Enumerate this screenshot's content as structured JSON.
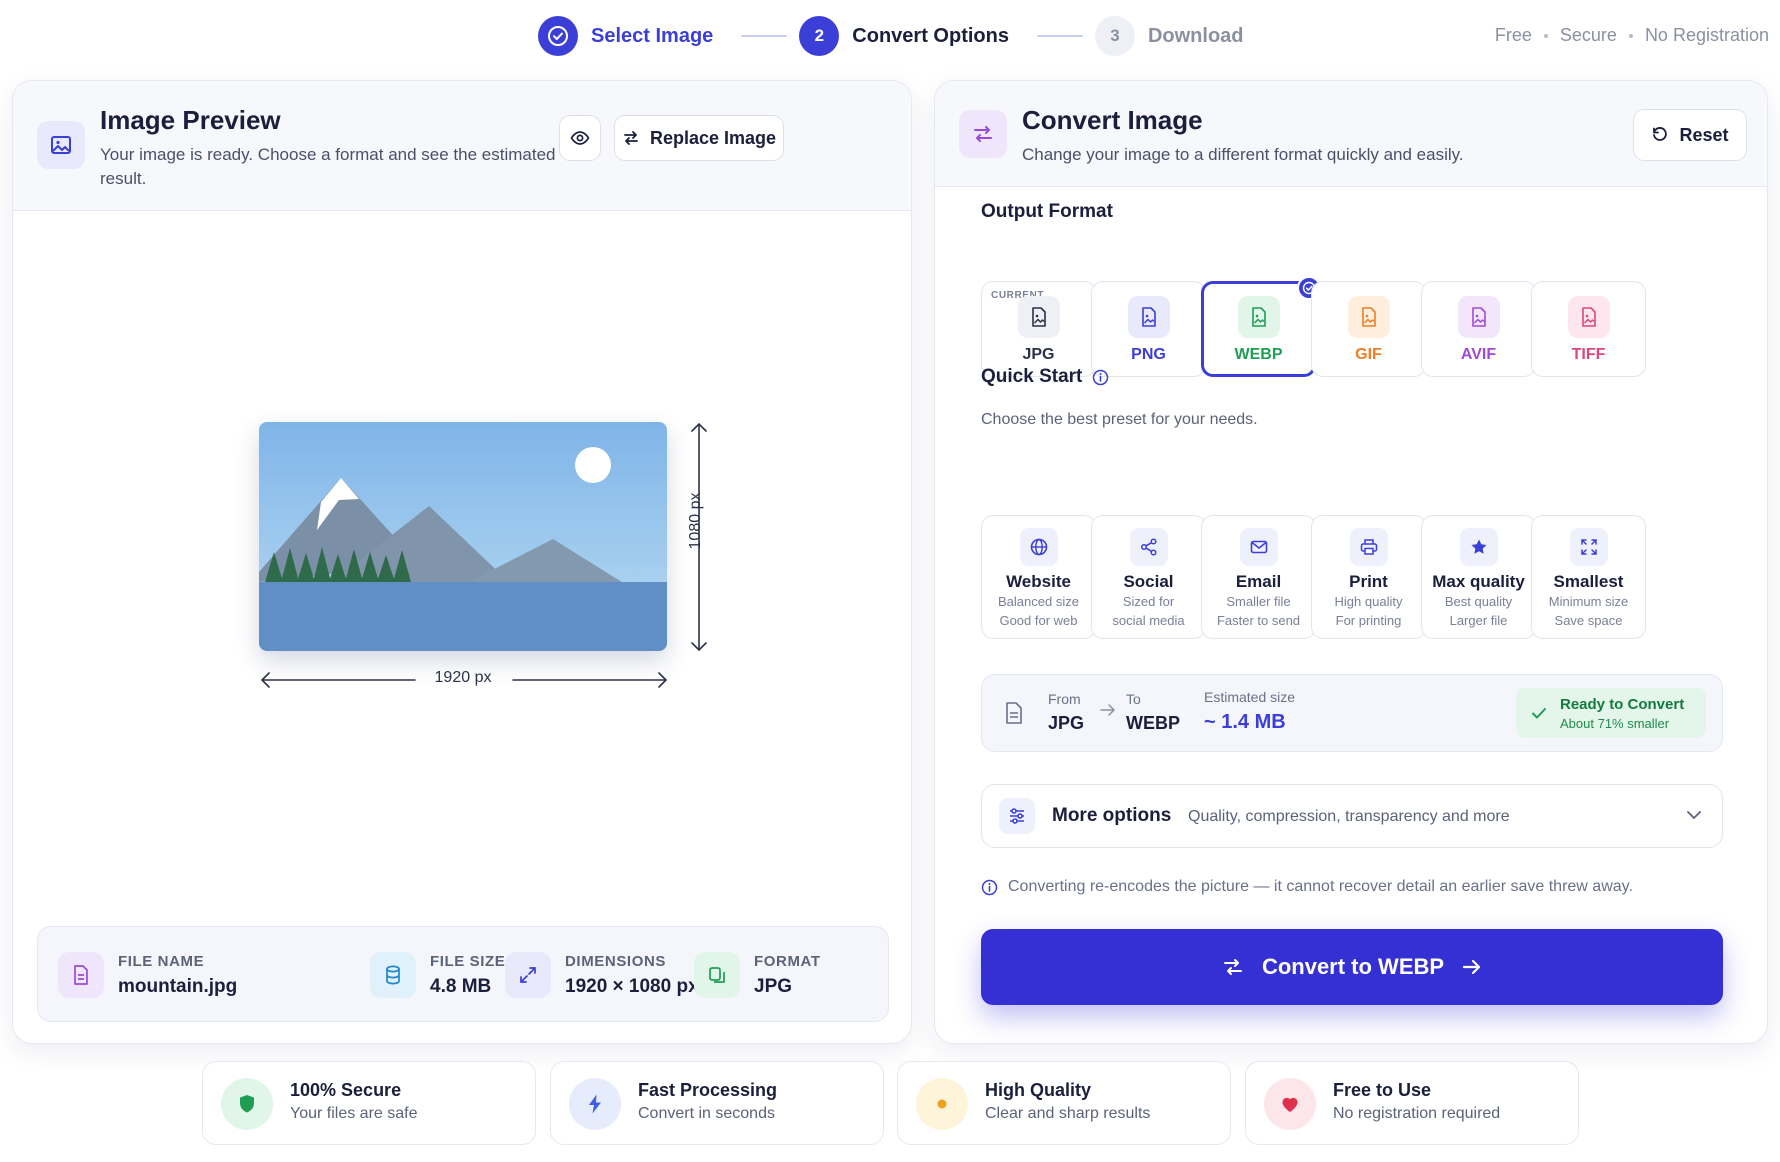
{
  "stepper": {
    "steps": [
      {
        "label": "Select Image",
        "state": "done"
      },
      {
        "number": "2",
        "label": "Convert Options",
        "state": "active"
      },
      {
        "number": "3",
        "label": "Download",
        "state": "todo"
      }
    ]
  },
  "tagline": [
    "Free",
    "Secure",
    "No Registration"
  ],
  "preview": {
    "title": "Image Preview",
    "subtitle": "Your image is ready. Choose a format and see the estimated result.",
    "replace_label": "Replace Image",
    "height_label": "1080 px",
    "width_label": "1920 px",
    "file": {
      "name_label": "FILE NAME",
      "name": "mountain.jpg",
      "size_label": "FILE SIZE",
      "size": "4.8 MB",
      "dim_label": "DIMENSIONS",
      "dim": "1920 × 1080 px",
      "format_label": "FORMAT",
      "format": "JPG"
    }
  },
  "convert": {
    "title": "Convert Image",
    "subtitle": "Change your image to a different format quickly and easily.",
    "reset_label": "Reset",
    "output_format_label": "Output Format",
    "current_tag": "CURRENT",
    "formats": [
      {
        "label": "JPG",
        "color": "#2c3148",
        "bg": "#eef0f5"
      },
      {
        "label": "PNG",
        "color": "#3b3fd8",
        "bg": "#e8eafc"
      },
      {
        "label": "WEBP",
        "color": "#1f9d55",
        "bg": "#e1f5e8"
      },
      {
        "label": "GIF",
        "color": "#f07d24",
        "bg": "#fdeede"
      },
      {
        "label": "AVIF",
        "color": "#a04ad8",
        "bg": "#f3e6fb"
      },
      {
        "label": "TIFF",
        "color": "#e0457b",
        "bg": "#fde6ee"
      }
    ],
    "selected_format": "WEBP",
    "quick_start_label": "Quick Start",
    "quick_start_sub": "Choose the best preset for your needs.",
    "presets": [
      {
        "title": "Website",
        "l1": "Balanced size",
        "l2": "Good for web",
        "icon": "globe-icon"
      },
      {
        "title": "Social",
        "l1": "Sized for",
        "l2": "social media",
        "icon": "share-icon"
      },
      {
        "title": "Email",
        "l1": "Smaller file",
        "l2": "Faster to send",
        "icon": "mail-icon"
      },
      {
        "title": "Print",
        "l1": "High quality",
        "l2": "For printing",
        "icon": "printer-icon"
      },
      {
        "title": "Max quality",
        "l1": "Best quality",
        "l2": "Larger file",
        "icon": "star-icon"
      },
      {
        "title": "Smallest",
        "l1": "Minimum size",
        "l2": "Save space",
        "icon": "compress-icon"
      }
    ],
    "summary": {
      "from_label": "From",
      "from": "JPG",
      "to_label": "To",
      "to": "WEBP",
      "est_label": "Estimated size",
      "est": "~ 1.4 MB",
      "ready_title": "Ready to Convert",
      "ready_sub": "About 71% smaller"
    },
    "more": {
      "title": "More options",
      "sub": "Quality, compression, transparency and more"
    },
    "note": "Converting re-encodes the picture — it cannot recover detail an earlier save threw away.",
    "convert_label": "Convert to WEBP"
  },
  "features": [
    {
      "title": "100% Secure",
      "desc": "Your files are safe",
      "icon": "shield-icon"
    },
    {
      "title": "Fast Processing",
      "desc": "Convert in seconds",
      "icon": "bolt-icon"
    },
    {
      "title": "High Quality",
      "desc": "Clear and sharp results",
      "icon": "sun-dot-icon"
    },
    {
      "title": "Free to Use",
      "desc": "No registration required",
      "icon": "heart-icon"
    }
  ]
}
